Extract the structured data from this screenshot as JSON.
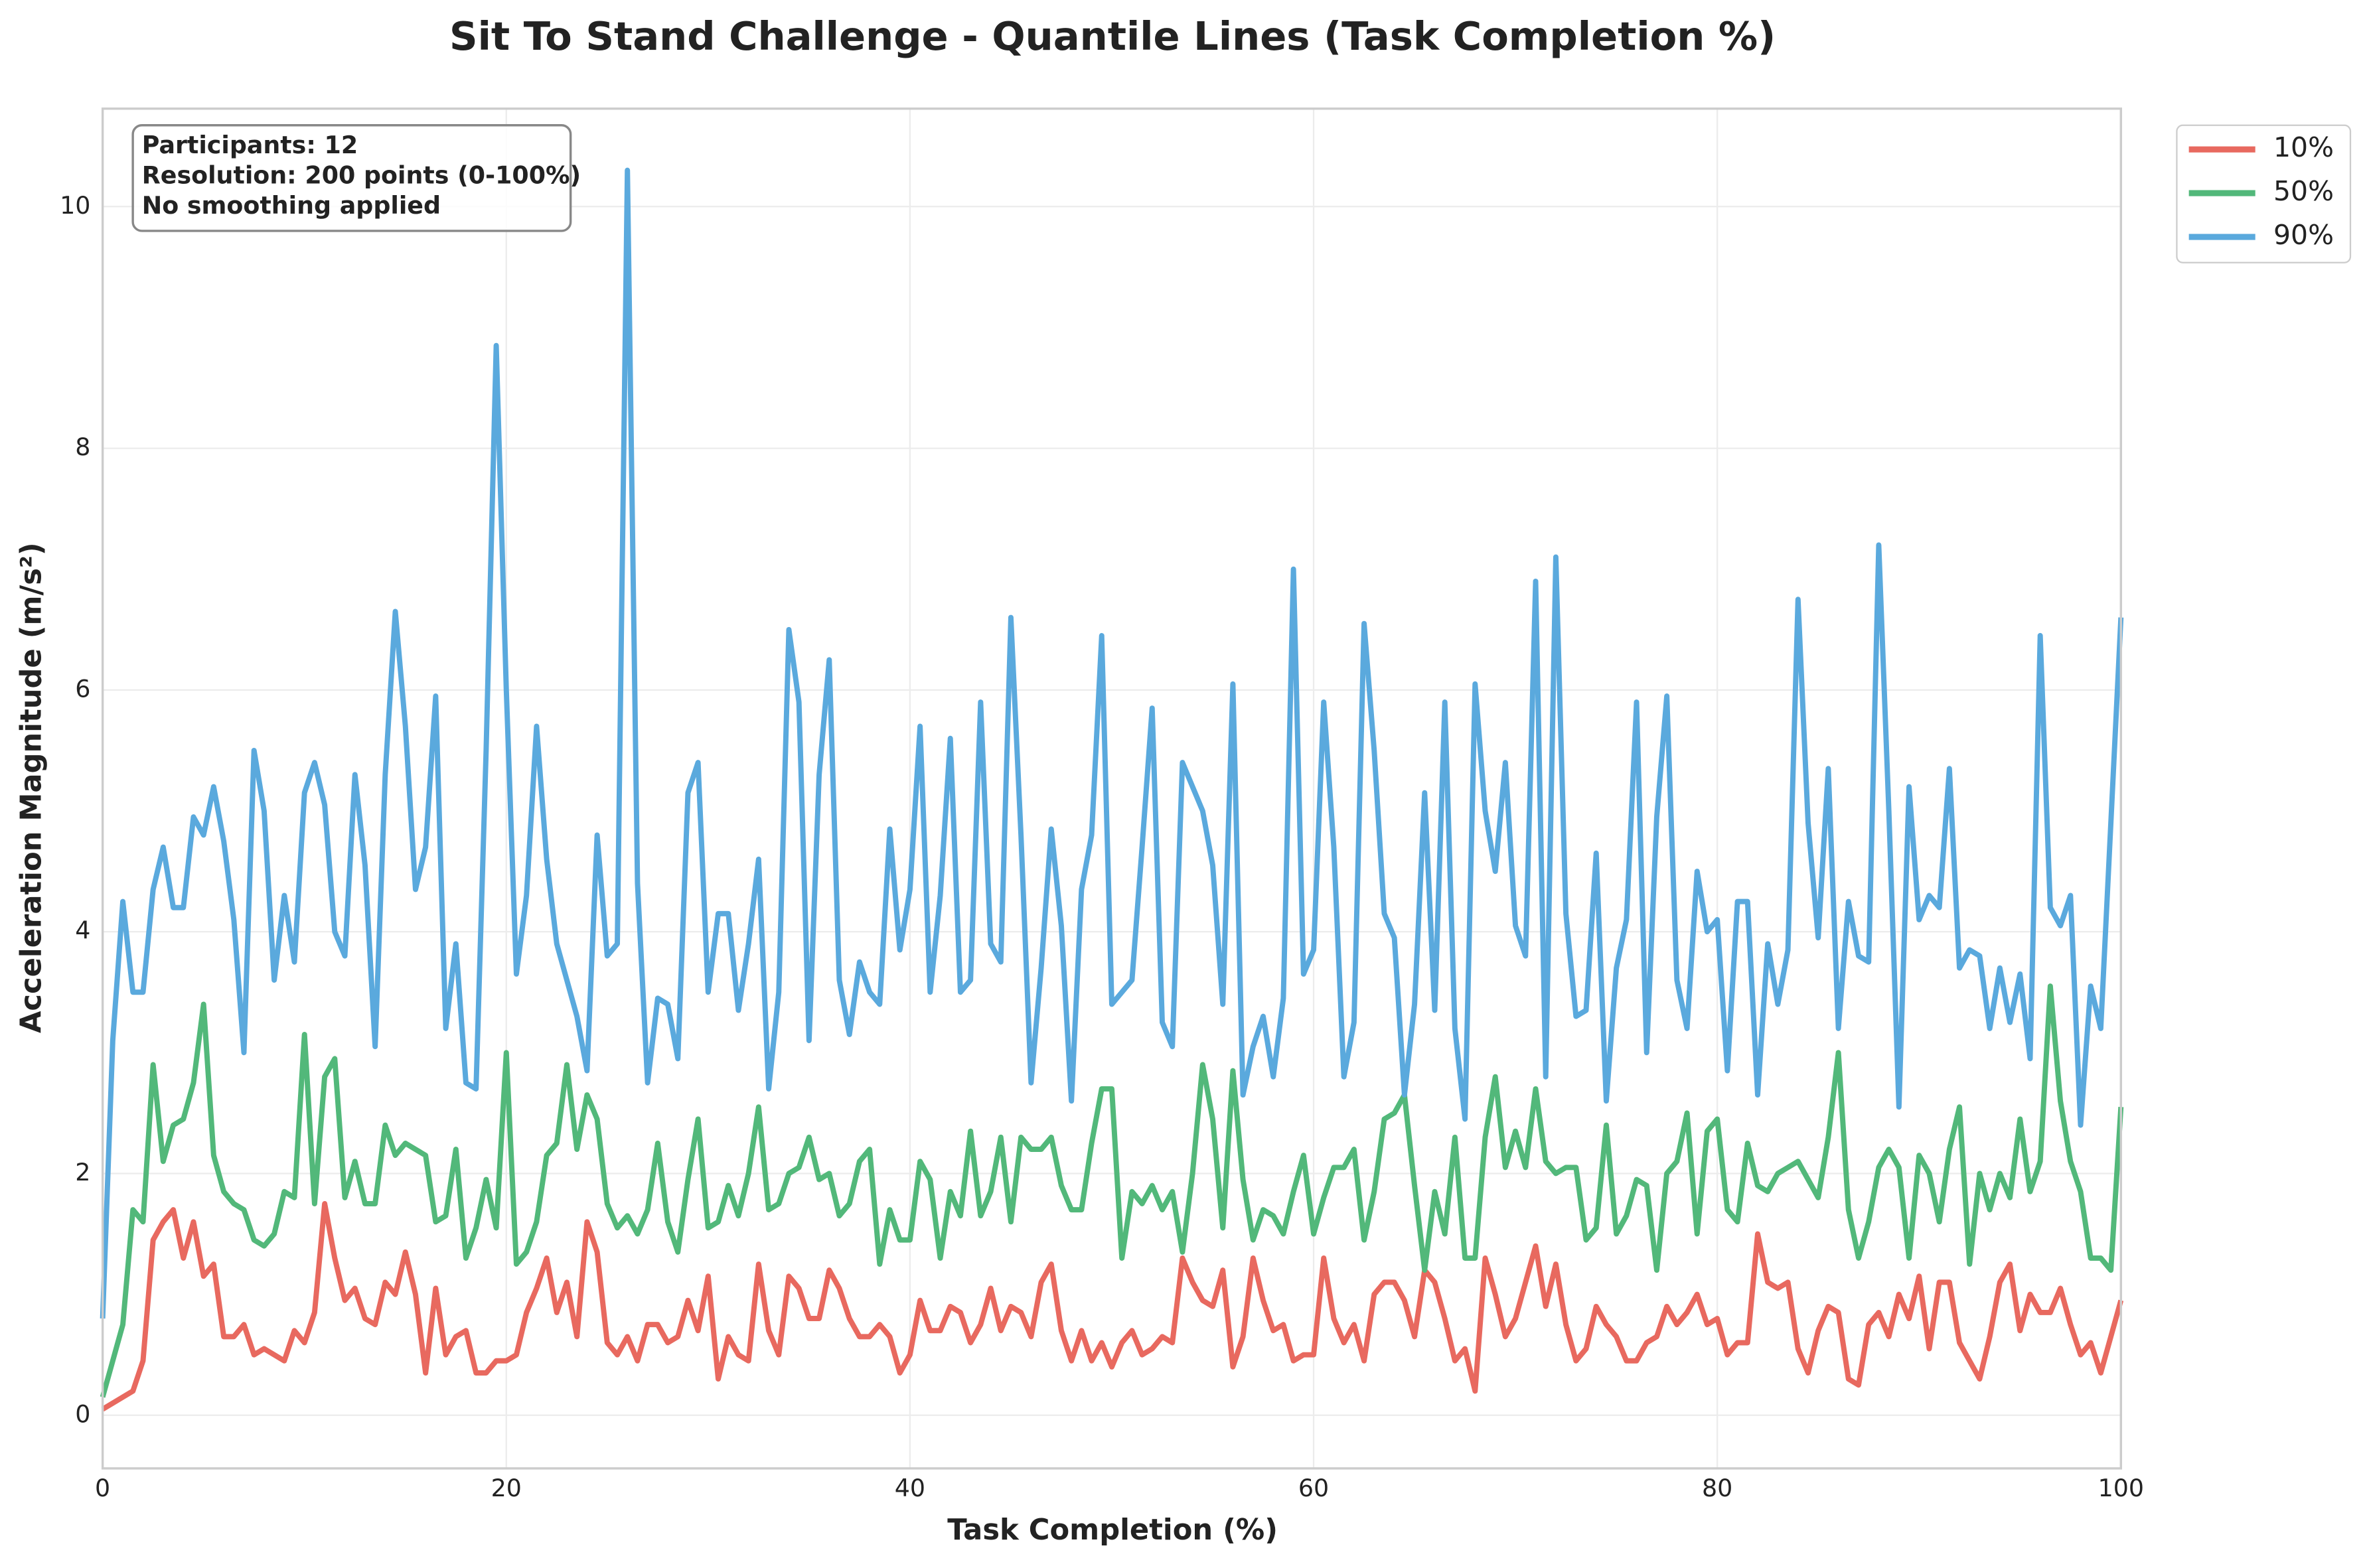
{
  "chart_data": {
    "type": "line",
    "title": "Sit To Stand Challenge - Quantile Lines (Task Completion %)",
    "xlabel": "Task Completion (%)",
    "ylabel": "Acceleration Magnitude (m/s²)",
    "annotations": [
      "Participants: 12",
      "Resolution: 200 points (0-100%)",
      "No smoothing applied"
    ],
    "grid": true,
    "legend_position": "outside-upper-right",
    "xlim": [
      0,
      100
    ],
    "ylim": [
      -0.44,
      10.81
    ],
    "xticks": [
      0,
      20,
      40,
      60,
      80,
      100
    ],
    "yticks": [
      0,
      2,
      4,
      6,
      8,
      10
    ],
    "x": [
      0,
      0.5,
      1,
      1.5,
      2,
      2.5,
      3,
      3.5,
      4,
      4.5,
      5,
      5.5,
      6,
      6.5,
      7,
      7.5,
      8,
      8.5,
      9,
      9.5,
      10,
      10.5,
      11,
      11.5,
      12,
      12.5,
      13,
      13.5,
      14,
      14.5,
      15,
      15.5,
      16,
      16.5,
      17,
      17.5,
      18,
      18.5,
      19,
      19.5,
      20,
      20.5,
      21,
      21.5,
      22,
      22.5,
      23,
      23.5,
      24,
      24.5,
      25,
      25.5,
      26,
      26.5,
      27,
      27.5,
      28,
      28.5,
      29,
      29.5,
      30,
      30.5,
      31,
      31.5,
      32,
      32.5,
      33,
      33.5,
      34,
      34.5,
      35,
      35.5,
      36,
      36.5,
      37,
      37.5,
      38,
      38.5,
      39,
      39.5,
      40,
      40.5,
      41,
      41.5,
      42,
      42.5,
      43,
      43.5,
      44,
      44.5,
      45,
      45.5,
      46,
      46.5,
      47,
      47.5,
      48,
      48.5,
      49,
      49.5,
      50,
      50.5,
      51,
      51.5,
      52,
      52.5,
      53,
      53.5,
      54,
      54.5,
      55,
      55.5,
      56,
      56.5,
      57,
      57.5,
      58,
      58.5,
      59,
      59.5,
      60,
      60.5,
      61,
      61.5,
      62,
      62.5,
      63,
      63.5,
      64,
      64.5,
      65,
      65.5,
      66,
      66.5,
      67,
      67.5,
      68,
      68.5,
      69,
      69.5,
      70,
      70.5,
      71,
      71.5,
      72,
      72.5,
      73,
      73.5,
      74,
      74.5,
      75,
      75.5,
      76,
      76.5,
      77,
      77.5,
      78,
      78.5,
      79,
      79.5,
      80,
      80.5,
      81,
      81.5,
      82,
      82.5,
      83,
      83.5,
      84,
      84.5,
      85,
      85.5,
      86,
      86.5,
      87,
      87.5,
      88,
      88.5,
      89,
      89.5,
      90,
      90.5,
      91,
      91.5,
      92,
      92.5,
      93,
      93.5,
      94,
      94.5,
      95,
      95.5,
      96,
      96.5,
      97,
      97.5,
      98,
      98.5,
      99,
      99.5,
      100
    ],
    "series": [
      {
        "name": "10%",
        "color": "#e8695f",
        "values": [
          0.05,
          0.1,
          0.15,
          0.2,
          0.45,
          1.45,
          1.6,
          1.7,
          1.3,
          1.6,
          1.15,
          1.25,
          0.65,
          0.65,
          0.75,
          0.5,
          0.55,
          0.5,
          0.45,
          0.7,
          0.6,
          0.85,
          1.75,
          1.3,
          0.95,
          1.05,
          0.8,
          0.75,
          1.1,
          1.0,
          1.35,
          1.0,
          0.35,
          1.05,
          0.5,
          0.65,
          0.7,
          0.35,
          0.35,
          0.45,
          0.45,
          0.5,
          0.85,
          1.05,
          1.3,
          0.85,
          1.1,
          0.65,
          1.6,
          1.35,
          0.6,
          0.5,
          0.65,
          0.45,
          0.75,
          0.75,
          0.6,
          0.65,
          0.95,
          0.7,
          1.15,
          0.3,
          0.65,
          0.5,
          0.45,
          1.25,
          0.7,
          0.5,
          1.15,
          1.05,
          0.8,
          0.8,
          1.2,
          1.05,
          0.8,
          0.65,
          0.65,
          0.75,
          0.65,
          0.35,
          0.5,
          0.95,
          0.7,
          0.7,
          0.9,
          0.85,
          0.6,
          0.75,
          1.05,
          0.7,
          0.9,
          0.85,
          0.65,
          1.1,
          1.25,
          0.7,
          0.45,
          0.7,
          0.45,
          0.6,
          0.4,
          0.6,
          0.7,
          0.5,
          0.55,
          0.65,
          0.6,
          1.3,
          1.1,
          0.95,
          0.9,
          1.2,
          0.4,
          0.65,
          1.3,
          0.95,
          0.7,
          0.75,
          0.45,
          0.5,
          0.5,
          1.3,
          0.8,
          0.6,
          0.75,
          0.45,
          1.0,
          1.1,
          1.1,
          0.95,
          0.65,
          1.2,
          1.1,
          0.8,
          0.45,
          0.55,
          0.2,
          1.3,
          1.0,
          0.65,
          0.8,
          1.1,
          1.4,
          0.9,
          1.25,
          0.75,
          0.45,
          0.55,
          0.9,
          0.75,
          0.65,
          0.45,
          0.45,
          0.6,
          0.65,
          0.9,
          0.75,
          0.85,
          1.0,
          0.75,
          0.8,
          0.5,
          0.6,
          0.6,
          1.5,
          1.1,
          1.05,
          1.1,
          0.55,
          0.35,
          0.7,
          0.9,
          0.85,
          0.3,
          0.25,
          0.75,
          0.85,
          0.65,
          1.0,
          0.8,
          1.15,
          0.55,
          1.1,
          1.1,
          0.6,
          0.45,
          0.3,
          0.65,
          1.1,
          1.25,
          0.7,
          1.0,
          0.85,
          0.85,
          1.05,
          0.75,
          0.5,
          0.6,
          0.35,
          0.65,
          0.95
        ]
      },
      {
        "name": "50%",
        "color": "#52b87a",
        "values": [
          0.15,
          0.45,
          0.75,
          1.7,
          1.6,
          2.9,
          2.1,
          2.4,
          2.45,
          2.75,
          3.4,
          2.15,
          1.85,
          1.75,
          1.7,
          1.45,
          1.4,
          1.5,
          1.85,
          1.8,
          3.15,
          1.75,
          2.8,
          2.95,
          1.8,
          2.1,
          1.75,
          1.75,
          2.4,
          2.15,
          2.25,
          2.2,
          2.15,
          1.6,
          1.65,
          2.2,
          1.3,
          1.55,
          1.95,
          1.55,
          3.0,
          1.25,
          1.35,
          1.6,
          2.15,
          2.25,
          2.9,
          2.2,
          2.65,
          2.45,
          1.75,
          1.55,
          1.65,
          1.5,
          1.7,
          2.25,
          1.6,
          1.35,
          1.95,
          2.45,
          1.55,
          1.6,
          1.9,
          1.65,
          2.0,
          2.55,
          1.7,
          1.75,
          2.0,
          2.05,
          2.3,
          1.95,
          2.0,
          1.65,
          1.75,
          2.1,
          2.2,
          1.25,
          1.7,
          1.45,
          1.45,
          2.1,
          1.95,
          1.3,
          1.85,
          1.65,
          2.35,
          1.65,
          1.85,
          2.3,
          1.6,
          2.3,
          2.2,
          2.2,
          2.3,
          1.9,
          1.7,
          1.7,
          2.25,
          2.7,
          2.7,
          1.3,
          1.85,
          1.75,
          1.9,
          1.7,
          1.85,
          1.35,
          2.0,
          2.9,
          2.45,
          1.55,
          2.85,
          1.95,
          1.45,
          1.7,
          1.65,
          1.5,
          1.85,
          2.15,
          1.5,
          1.8,
          2.05,
          2.05,
          2.2,
          1.45,
          1.85,
          2.45,
          2.5,
          2.65,
          1.9,
          1.2,
          1.85,
          1.5,
          2.3,
          1.3,
          1.3,
          2.3,
          2.8,
          2.05,
          2.35,
          2.05,
          2.7,
          2.1,
          2.0,
          2.05,
          2.05,
          1.45,
          1.55,
          2.4,
          1.5,
          1.65,
          1.95,
          1.9,
          1.2,
          2.0,
          2.1,
          2.5,
          1.5,
          2.35,
          2.45,
          1.7,
          1.6,
          2.25,
          1.9,
          1.85,
          2.0,
          2.05,
          2.1,
          1.95,
          1.8,
          2.3,
          3.0,
          1.7,
          1.3,
          1.6,
          2.05,
          2.2,
          2.05,
          1.3,
          2.15,
          2.0,
          1.6,
          2.2,
          2.55,
          1.25,
          2.0,
          1.7,
          2.0,
          1.8,
          2.45,
          1.85,
          2.1,
          3.55,
          2.6,
          2.1,
          1.85,
          1.3,
          1.3,
          1.2,
          2.55
        ]
      },
      {
        "name": "90%",
        "color": "#5aa9dd",
        "values": [
          0.8,
          3.1,
          4.25,
          3.5,
          3.5,
          4.35,
          4.7,
          4.2,
          4.2,
          4.95,
          4.8,
          5.2,
          4.75,
          4.1,
          3.0,
          5.5,
          5.0,
          3.6,
          4.3,
          3.75,
          5.15,
          5.4,
          5.05,
          4.0,
          3.8,
          5.3,
          4.55,
          3.05,
          5.3,
          6.65,
          5.7,
          4.35,
          4.7,
          5.95,
          3.2,
          3.9,
          2.75,
          2.7,
          5.5,
          8.85,
          6.0,
          3.65,
          4.3,
          5.7,
          4.6,
          3.9,
          3.6,
          3.3,
          2.85,
          4.8,
          3.8,
          3.9,
          10.3,
          4.4,
          2.75,
          3.45,
          3.4,
          2.95,
          5.15,
          5.4,
          3.5,
          4.15,
          4.15,
          3.35,
          3.9,
          4.6,
          2.7,
          3.5,
          6.5,
          5.9,
          3.1,
          5.3,
          6.25,
          3.6,
          3.15,
          3.75,
          3.5,
          3.4,
          4.85,
          3.85,
          4.35,
          5.7,
          3.5,
          4.3,
          5.6,
          3.5,
          3.6,
          5.9,
          3.9,
          3.75,
          6.6,
          4.8,
          2.75,
          3.7,
          4.85,
          4.05,
          2.6,
          4.35,
          4.8,
          6.45,
          3.4,
          3.5,
          3.6,
          4.7,
          5.85,
          3.25,
          3.05,
          5.4,
          5.2,
          5.0,
          4.55,
          3.4,
          6.05,
          2.65,
          3.05,
          3.3,
          2.8,
          3.45,
          7.0,
          3.65,
          3.85,
          5.9,
          4.7,
          2.8,
          3.25,
          6.55,
          5.5,
          4.15,
          3.95,
          2.65,
          3.4,
          5.15,
          3.35,
          5.9,
          3.2,
          2.45,
          6.05,
          5.0,
          4.5,
          5.4,
          4.05,
          3.8,
          6.9,
          2.8,
          7.1,
          4.15,
          3.3,
          3.35,
          4.65,
          2.6,
          3.7,
          4.1,
          5.9,
          3.0,
          4.95,
          5.95,
          3.6,
          3.2,
          4.5,
          4.0,
          4.1,
          2.85,
          4.25,
          4.25,
          2.65,
          3.9,
          3.4,
          3.85,
          6.75,
          4.9,
          3.95,
          5.35,
          3.2,
          4.25,
          3.8,
          3.75,
          7.2,
          5.0,
          2.55,
          5.2,
          4.1,
          4.3,
          4.2,
          5.35,
          3.7,
          3.85,
          3.8,
          3.2,
          3.7,
          3.25,
          3.65,
          2.95,
          6.45,
          4.2,
          4.05,
          4.3,
          2.4,
          3.55,
          3.2,
          4.9,
          6.6
        ]
      }
    ]
  }
}
